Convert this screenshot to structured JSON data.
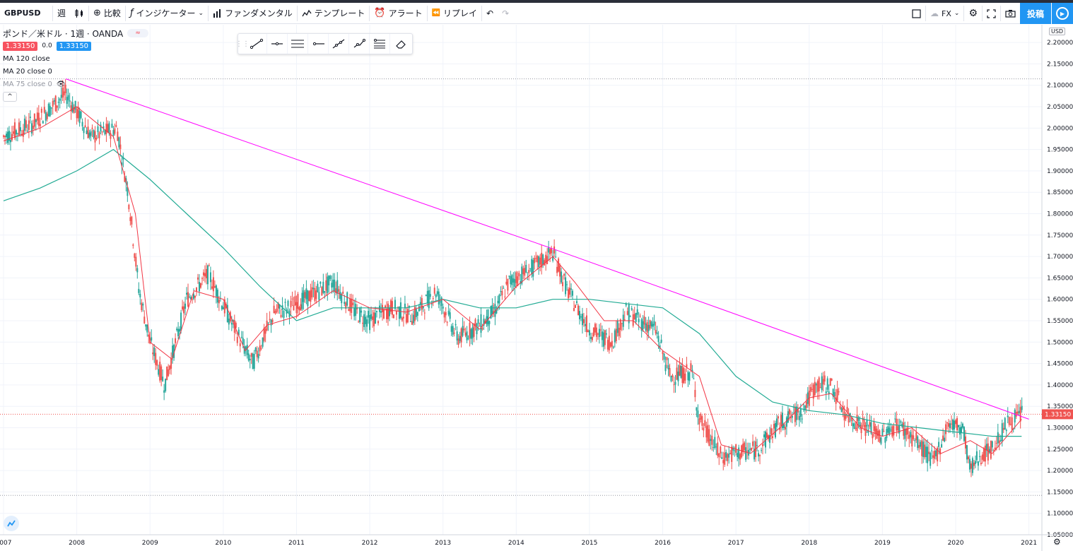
{
  "toolbar": {
    "symbol": "GBPUSD",
    "interval": "週",
    "compare_label": "比較",
    "indicators_label": "インジケーター",
    "fundamentals_label": "ファンダメンタル",
    "templates_label": "テンプレート",
    "alert_label": "アラート",
    "replay_label": "リプレイ",
    "fx_label": "FX",
    "publish_label": "投稿"
  },
  "legend": {
    "title": "ポンド／米ドル · 1週 · OANDA",
    "bid": "1.33150",
    "spread": "0.0",
    "ask": "1.33150",
    "ma1": "MA 120 close",
    "ma2": "MA 20 close 0",
    "ma3": "MA 75 close 0"
  },
  "price_axis": {
    "currency": "USD",
    "current_price": "1.33150",
    "ticks": [
      "2.20000",
      "2.15000",
      "2.10000",
      "2.05000",
      "2.00000",
      "1.95000",
      "1.90000",
      "1.85000",
      "1.80000",
      "1.75000",
      "1.70000",
      "1.65000",
      "1.60000",
      "1.55000",
      "1.50000",
      "1.45000",
      "1.40000",
      "1.35000",
      "1.30000",
      "1.25000",
      "1.20000",
      "1.15000",
      "1.10000",
      "1.05000"
    ]
  },
  "time_axis": {
    "ticks": [
      "2007",
      "2008",
      "2009",
      "2010",
      "2011",
      "2012",
      "2013",
      "2014",
      "2015",
      "2016",
      "2017",
      "2018",
      "2019",
      "2020",
      "2021"
    ]
  },
  "colors": {
    "bull": "#ef5350",
    "bear": "#26a69a",
    "ma_fast": "#f23645",
    "ma_slow": "#22ab94",
    "trendline": "#ff00ff",
    "accent": "#2196f3"
  },
  "chart_data": {
    "type": "line",
    "series": [
      {
        "name": "MA 120 close",
        "x": [
          2007.0,
          2007.5,
          2008.0,
          2008.5,
          2009.0,
          2009.5,
          2010.0,
          2010.5,
          2011.0,
          2011.5,
          2012.0,
          2012.5,
          2013.0,
          2013.5,
          2014.0,
          2014.5,
          2015.0,
          2015.5,
          2016.0,
          2016.5,
          2017.0,
          2017.5,
          2018.0,
          2018.5,
          2019.0,
          2019.5,
          2020.0,
          2020.5,
          2020.9
        ],
        "values": [
          1.83,
          1.86,
          1.9,
          1.95,
          1.88,
          1.8,
          1.72,
          1.63,
          1.55,
          1.58,
          1.58,
          1.58,
          1.6,
          1.58,
          1.58,
          1.6,
          1.6,
          1.59,
          1.58,
          1.52,
          1.42,
          1.36,
          1.34,
          1.33,
          1.31,
          1.3,
          1.29,
          1.28,
          1.28
        ]
      },
      {
        "name": "MA 20 close 0",
        "x": [
          2007.0,
          2007.5,
          2008.0,
          2008.5,
          2008.8,
          2009.0,
          2009.3,
          2009.6,
          2010.0,
          2010.3,
          2010.6,
          2011.0,
          2011.5,
          2012.0,
          2012.5,
          2013.0,
          2013.5,
          2014.0,
          2014.5,
          2014.8,
          2015.2,
          2015.6,
          2016.0,
          2016.5,
          2016.8,
          2017.2,
          2017.6,
          2018.0,
          2018.3,
          2018.7,
          2019.0,
          2019.4,
          2019.8,
          2020.2,
          2020.5,
          2020.9
        ],
        "values": [
          1.97,
          2.0,
          2.05,
          1.98,
          1.8,
          1.5,
          1.46,
          1.62,
          1.6,
          1.48,
          1.54,
          1.56,
          1.62,
          1.58,
          1.57,
          1.6,
          1.53,
          1.63,
          1.7,
          1.64,
          1.55,
          1.55,
          1.48,
          1.42,
          1.26,
          1.24,
          1.3,
          1.37,
          1.38,
          1.3,
          1.28,
          1.3,
          1.24,
          1.27,
          1.24,
          1.32
        ]
      },
      {
        "name": "Trend line",
        "x": [
          2007.85,
          2014.5,
          2021.0
        ],
        "values": [
          2.115,
          1.718,
          1.32
        ]
      }
    ],
    "ylim": [
      1.05,
      2.22
    ],
    "xlim": [
      2007.0,
      2021.1
    ]
  }
}
